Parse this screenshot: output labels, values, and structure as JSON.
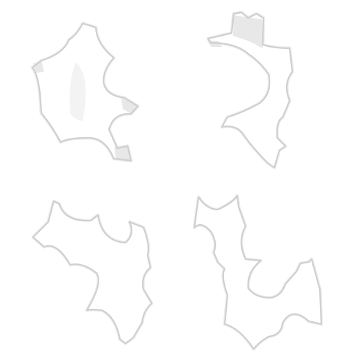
{
  "scene": {
    "background_color": "#ffffff",
    "piece_color": "#ffffff",
    "piece_edge_color": "#cfcfcf",
    "piece_shadow_color": "#ececec",
    "piece_sheen_color": "#e6e6e6",
    "pieces": [
      {
        "id": "piece-1",
        "shape": "scalloped-tile"
      },
      {
        "id": "piece-2",
        "shape": "scalloped-tile"
      },
      {
        "id": "piece-3",
        "shape": "scalloped-tile"
      },
      {
        "id": "piece-4",
        "shape": "scalloped-tile"
      }
    ]
  }
}
